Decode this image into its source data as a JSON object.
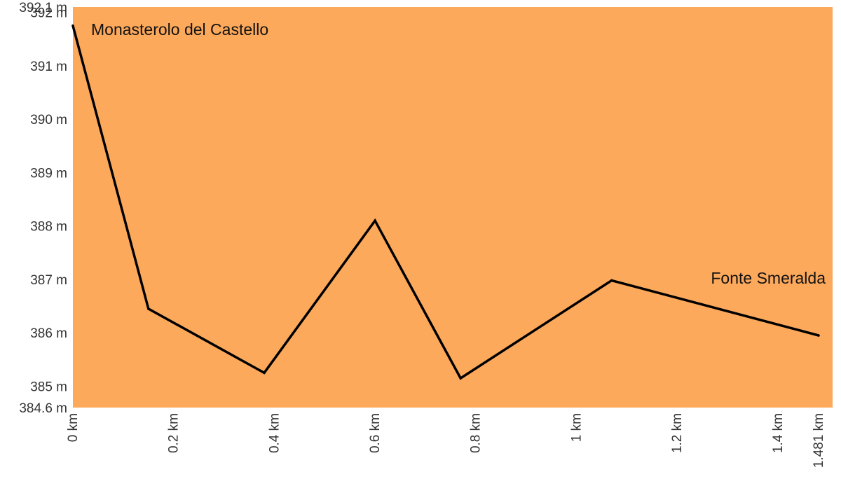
{
  "chart_data": {
    "type": "line",
    "title": "",
    "xlabel": "",
    "ylabel": "",
    "xlim": [
      0,
      1.481
    ],
    "ylim": [
      384.6,
      392.1
    ],
    "grid": false,
    "background_color": "#FDA95B",
    "line_color": "#000000",
    "x_ticks": [
      {
        "value": 0,
        "label": "0 km"
      },
      {
        "value": 0.2,
        "label": "0.2 km"
      },
      {
        "value": 0.4,
        "label": "0.4 km"
      },
      {
        "value": 0.6,
        "label": "0.6 km"
      },
      {
        "value": 0.8,
        "label": "0.8 km"
      },
      {
        "value": 1.0,
        "label": "1 km"
      },
      {
        "value": 1.2,
        "label": "1.2 km"
      },
      {
        "value": 1.4,
        "label": "1.4 km"
      },
      {
        "value": 1.481,
        "label": "1.481 km"
      }
    ],
    "y_ticks": [
      {
        "value": 392.1,
        "label": "392.1 m"
      },
      {
        "value": 392,
        "label": "392 m"
      },
      {
        "value": 391,
        "label": "391 m"
      },
      {
        "value": 390,
        "label": "390 m"
      },
      {
        "value": 389,
        "label": "389 m"
      },
      {
        "value": 388,
        "label": "388 m"
      },
      {
        "value": 387,
        "label": "387 m"
      },
      {
        "value": 386,
        "label": "386 m"
      },
      {
        "value": 385,
        "label": "385 m"
      },
      {
        "value": 384.6,
        "label": "384.6 m"
      }
    ],
    "series": [
      {
        "x": [
          0,
          0.15,
          0.38,
          0.6,
          0.77,
          1.07,
          1.481
        ],
        "y": [
          391.75,
          386.45,
          385.25,
          388.1,
          385.15,
          386.98,
          385.95
        ]
      }
    ],
    "annotations": [
      {
        "text": "Monasterolo del Castello",
        "anchor": "start"
      },
      {
        "text": "Fonte Smeralda",
        "anchor": "end"
      }
    ]
  }
}
